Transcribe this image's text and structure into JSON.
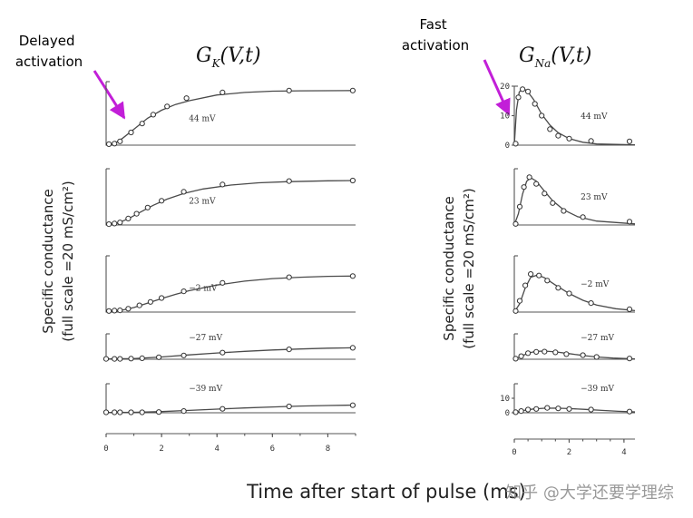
{
  "annotations": {
    "delayed": [
      "Delayed",
      "activation"
    ],
    "fast": [
      "Fast",
      "activation"
    ],
    "accent_color": "#c21fd8"
  },
  "x_axis_label": "Time after start of pulse (ms)",
  "watermark": "知乎 @大学还要学理综",
  "chart_data": [
    {
      "type": "line",
      "title": "G_K(V,t)",
      "title_main": "G",
      "title_sub": "K",
      "title_args": "(V,t)",
      "ylabel": [
        "Specific conductance",
        "(full scale =20 mS/cm²)"
      ],
      "xlim": [
        0,
        9
      ],
      "ylim": [
        0,
        20
      ],
      "xticks": [
        "0",
        "2",
        "4",
        "6",
        "8"
      ],
      "panels": [
        {
          "label": "44 mV",
          "points": [
            [
              0.1,
              0.3
            ],
            [
              0.3,
              0.5
            ],
            [
              0.5,
              1.2
            ],
            [
              0.9,
              4.0
            ],
            [
              1.3,
              6.8
            ],
            [
              1.7,
              9.6
            ],
            [
              2.2,
              12.2
            ],
            [
              2.9,
              14.8
            ],
            [
              4.2,
              16.6
            ],
            [
              6.6,
              17.2
            ],
            [
              8.9,
              17.2
            ]
          ],
          "curve": [
            [
              0,
              0
            ],
            [
              0.3,
              0.5
            ],
            [
              0.6,
              2.2
            ],
            [
              1,
              5
            ],
            [
              1.5,
              8.5
            ],
            [
              2,
              11
            ],
            [
              2.5,
              12.8
            ],
            [
              3,
              14
            ],
            [
              4,
              15.8
            ],
            [
              5,
              16.6
            ],
            [
              6,
              17
            ],
            [
              7,
              17.1
            ],
            [
              9,
              17.2
            ]
          ]
        },
        {
          "label": "23 mV",
          "points": [
            [
              0.1,
              0.3
            ],
            [
              0.3,
              0.5
            ],
            [
              0.5,
              0.9
            ],
            [
              0.8,
              2.3
            ],
            [
              1.1,
              4.0
            ],
            [
              1.5,
              6.2
            ],
            [
              2.0,
              8.6
            ],
            [
              2.8,
              11.8
            ],
            [
              4.2,
              14.4
            ],
            [
              6.6,
              15.6
            ],
            [
              8.9,
              15.8
            ]
          ],
          "curve": [
            [
              0,
              0
            ],
            [
              0.4,
              0.6
            ],
            [
              0.8,
              2.2
            ],
            [
              1.2,
              4.4
            ],
            [
              1.7,
              7
            ],
            [
              2.2,
              9.2
            ],
            [
              2.8,
              11.2
            ],
            [
              3.5,
              12.8
            ],
            [
              4.5,
              14.2
            ],
            [
              5.5,
              15
            ],
            [
              6.5,
              15.4
            ],
            [
              8,
              15.7
            ],
            [
              9,
              15.8
            ]
          ]
        },
        {
          "label": "−2 mV",
          "points": [
            [
              0.1,
              0.4
            ],
            [
              0.3,
              0.5
            ],
            [
              0.5,
              0.6
            ],
            [
              0.8,
              1.2
            ],
            [
              1.2,
              2.4
            ],
            [
              1.6,
              3.6
            ],
            [
              2.0,
              5.0
            ],
            [
              2.8,
              7.4
            ],
            [
              4.2,
              10.4
            ],
            [
              6.6,
              12.4
            ],
            [
              8.9,
              12.8
            ]
          ],
          "curve": [
            [
              0,
              0.2
            ],
            [
              0.5,
              0.5
            ],
            [
              1,
              1.6
            ],
            [
              1.5,
              3.2
            ],
            [
              2,
              4.8
            ],
            [
              2.5,
              6.3
            ],
            [
              3,
              7.6
            ],
            [
              4,
              9.6
            ],
            [
              5,
              11
            ],
            [
              6,
              11.9
            ],
            [
              7,
              12.4
            ],
            [
              8,
              12.7
            ],
            [
              9,
              12.8
            ]
          ]
        },
        {
          "label": "−27 mV",
          "points": [
            [
              0.0,
              0.3
            ],
            [
              0.3,
              0.3
            ],
            [
              0.5,
              0.3
            ],
            [
              0.9,
              0.5
            ],
            [
              1.3,
              0.8
            ],
            [
              1.9,
              1.6
            ],
            [
              2.8,
              3.0
            ],
            [
              4.2,
              5.2
            ],
            [
              6.6,
              7.8
            ],
            [
              8.9,
              9.0
            ]
          ],
          "curve": [
            [
              0,
              0.2
            ],
            [
              1,
              0.5
            ],
            [
              2,
              1.8
            ],
            [
              3,
              3.4
            ],
            [
              4,
              4.9
            ],
            [
              5,
              6.2
            ],
            [
              6,
              7.3
            ],
            [
              7,
              8.1
            ],
            [
              8,
              8.7
            ],
            [
              9,
              9.1
            ]
          ]
        },
        {
          "label": "−39 mV",
          "points": [
            [
              0.0,
              0.3
            ],
            [
              0.3,
              0.3
            ],
            [
              0.5,
              0.3
            ],
            [
              0.9,
              0.3
            ],
            [
              1.3,
              0.3
            ],
            [
              1.9,
              0.5
            ],
            [
              2.8,
              1.2
            ],
            [
              4.2,
              2.7
            ],
            [
              6.6,
              4.4
            ],
            [
              8.9,
              5.2
            ]
          ],
          "curve": [
            [
              0,
              0.2
            ],
            [
              1,
              0.3
            ],
            [
              2,
              0.8
            ],
            [
              3,
              1.6
            ],
            [
              4,
              2.5
            ],
            [
              5,
              3.3
            ],
            [
              6,
              4
            ],
            [
              7,
              4.6
            ],
            [
              8,
              5
            ],
            [
              9,
              5.3
            ]
          ]
        }
      ]
    },
    {
      "type": "line",
      "title": "G_Na(V,t)",
      "title_main": "G",
      "title_sub": "Na",
      "title_args": "(V,t)",
      "ylabel": [
        "Specific conductance",
        "(full scale =20 mS/cm²)"
      ],
      "xlim": [
        0,
        4.4
      ],
      "ylim": [
        0,
        20
      ],
      "xticks": [
        "0",
        "2",
        "4"
      ],
      "panels": [
        {
          "label": "44 mV",
          "yticks": [
            "0",
            "10",
            "20"
          ],
          "points": [
            [
              0.05,
              0.5
            ],
            [
              0.15,
              16.2
            ],
            [
              0.3,
              19.0
            ],
            [
              0.5,
              18.2
            ],
            [
              0.75,
              14.0
            ],
            [
              1.0,
              10.0
            ],
            [
              1.3,
              5.4
            ],
            [
              1.6,
              3.2
            ],
            [
              2.0,
              2.2
            ],
            [
              2.8,
              1.4
            ],
            [
              4.2,
              1.3
            ]
          ],
          "curve": [
            [
              0,
              0
            ],
            [
              0.08,
              12
            ],
            [
              0.18,
              18
            ],
            [
              0.3,
              19.2
            ],
            [
              0.45,
              18.6
            ],
            [
              0.7,
              15.5
            ],
            [
              1,
              10.5
            ],
            [
              1.3,
              6.8
            ],
            [
              1.6,
              4.2
            ],
            [
              2,
              2.2
            ],
            [
              2.5,
              1
            ],
            [
              3,
              0.4
            ],
            [
              4.4,
              0.1
            ]
          ]
        },
        {
          "label": "23 mV",
          "points": [
            [
              0.05,
              0.4
            ],
            [
              0.2,
              6.5
            ],
            [
              0.35,
              13.5
            ],
            [
              0.55,
              17.0
            ],
            [
              0.8,
              14.6
            ],
            [
              1.1,
              11.2
            ],
            [
              1.4,
              7.8
            ],
            [
              1.8,
              5.0
            ],
            [
              2.5,
              2.8
            ],
            [
              4.2,
              1.2
            ]
          ],
          "curve": [
            [
              0,
              0
            ],
            [
              0.15,
              4
            ],
            [
              0.3,
              11
            ],
            [
              0.45,
              15.5
            ],
            [
              0.6,
              16.8
            ],
            [
              0.8,
              15.6
            ],
            [
              1.1,
              12
            ],
            [
              1.4,
              8.6
            ],
            [
              1.8,
              5.4
            ],
            [
              2.3,
              3
            ],
            [
              3,
              1.4
            ],
            [
              4.4,
              0.4
            ]
          ]
        },
        {
          "label": "−2 mV",
          "points": [
            [
              0.05,
              0.4
            ],
            [
              0.2,
              4.0
            ],
            [
              0.4,
              9.5
            ],
            [
              0.6,
              13.5
            ],
            [
              0.9,
              13.0
            ],
            [
              1.2,
              11.2
            ],
            [
              1.6,
              8.6
            ],
            [
              2.0,
              6.6
            ],
            [
              2.8,
              3.2
            ],
            [
              4.2,
              1.0
            ]
          ],
          "curve": [
            [
              0,
              0
            ],
            [
              0.2,
              3
            ],
            [
              0.4,
              8.6
            ],
            [
              0.6,
              12.4
            ],
            [
              0.85,
              13.2
            ],
            [
              1.1,
              12.2
            ],
            [
              1.5,
              9.6
            ],
            [
              2,
              6.6
            ],
            [
              2.5,
              4.2
            ],
            [
              3,
              2.5
            ],
            [
              3.7,
              1.2
            ],
            [
              4.4,
              0.5
            ]
          ]
        },
        {
          "label": "−27 mV",
          "points": [
            [
              0.05,
              0.4
            ],
            [
              0.25,
              2.4
            ],
            [
              0.5,
              4.8
            ],
            [
              0.8,
              5.8
            ],
            [
              1.1,
              6.0
            ],
            [
              1.5,
              5.4
            ],
            [
              1.9,
              4.0
            ],
            [
              2.5,
              3.2
            ],
            [
              3.0,
              1.8
            ],
            [
              4.2,
              0.6
            ]
          ],
          "curve": [
            [
              0,
              0
            ],
            [
              0.2,
              1.8
            ],
            [
              0.5,
              4.8
            ],
            [
              0.8,
              6.2
            ],
            [
              1.1,
              6.4
            ],
            [
              1.5,
              5.8
            ],
            [
              2,
              4.4
            ],
            [
              2.5,
              2.9
            ],
            [
              3,
              1.8
            ],
            [
              3.6,
              0.9
            ],
            [
              4.4,
              0.3
            ]
          ]
        },
        {
          "label": "−39 mV",
          "yticks": [
            "0",
            "10"
          ],
          "points": [
            [
              0.05,
              0.4
            ],
            [
              0.25,
              1.2
            ],
            [
              0.5,
              2.2
            ],
            [
              0.8,
              2.6
            ],
            [
              1.2,
              3.4
            ],
            [
              1.6,
              3.0
            ],
            [
              2.0,
              2.6
            ],
            [
              2.8,
              2.2
            ],
            [
              4.2,
              0.8
            ]
          ],
          "curve": [
            [
              0,
              0
            ],
            [
              0.3,
              1.5
            ],
            [
              0.7,
              2.6
            ],
            [
              1.1,
              3.1
            ],
            [
              1.5,
              3.2
            ],
            [
              2,
              2.9
            ],
            [
              2.6,
              2.3
            ],
            [
              3.2,
              1.6
            ],
            [
              3.8,
              1
            ],
            [
              4.4,
              0.6
            ]
          ]
        }
      ]
    }
  ]
}
